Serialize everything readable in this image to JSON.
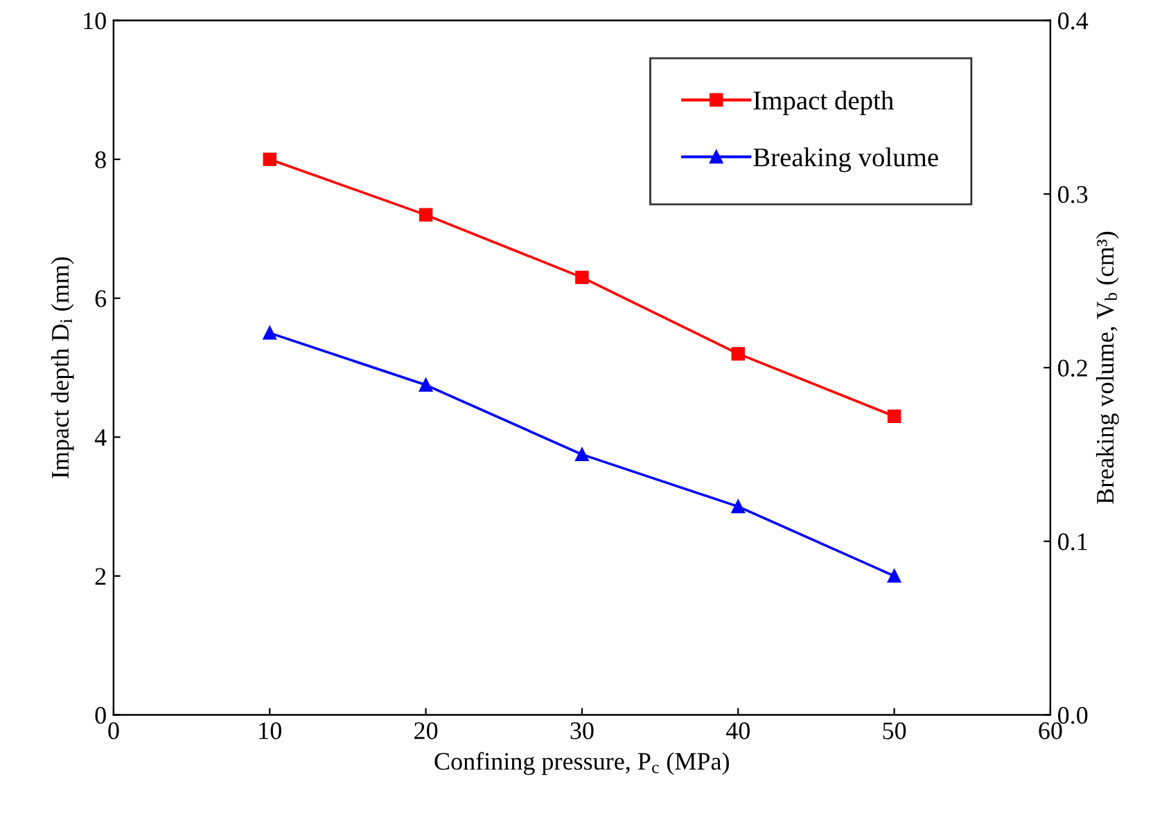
{
  "chart_data": {
    "type": "line",
    "xlabel": "Confining pressure, P$_{c}$ (MPa)",
    "ylabel": "Impact depth D$_{i}$ (mm)",
    "y2label": "Breaking volume, V$_{b}$ (cm³)",
    "x": [
      10,
      20,
      30,
      40,
      50
    ],
    "series": [
      {
        "name": "Impact depth",
        "color": "#ff0000",
        "marker": "square",
        "values": [
          8.0,
          7.2,
          6.3,
          5.2,
          4.3
        ]
      },
      {
        "name": "Breaking volume",
        "color": "#0000ff",
        "marker": "triangle",
        "axis": "y2",
        "values": [
          0.22,
          0.19,
          0.15,
          0.12,
          0.08
        ]
      }
    ],
    "xlim": [
      0,
      60
    ],
    "xticks": [
      0,
      10,
      20,
      30,
      40,
      50,
      60
    ],
    "ylim": [
      0,
      10
    ],
    "yticks": [
      0,
      2,
      4,
      6,
      8,
      10
    ],
    "y2lim": [
      0,
      0.4
    ],
    "y2ticks": [
      {
        "value": 0,
        "label": "0.0"
      },
      0.1,
      0.2,
      0.3,
      0.4
    ],
    "legend": "top right",
    "grid": false,
    "line_style": "solid"
  }
}
